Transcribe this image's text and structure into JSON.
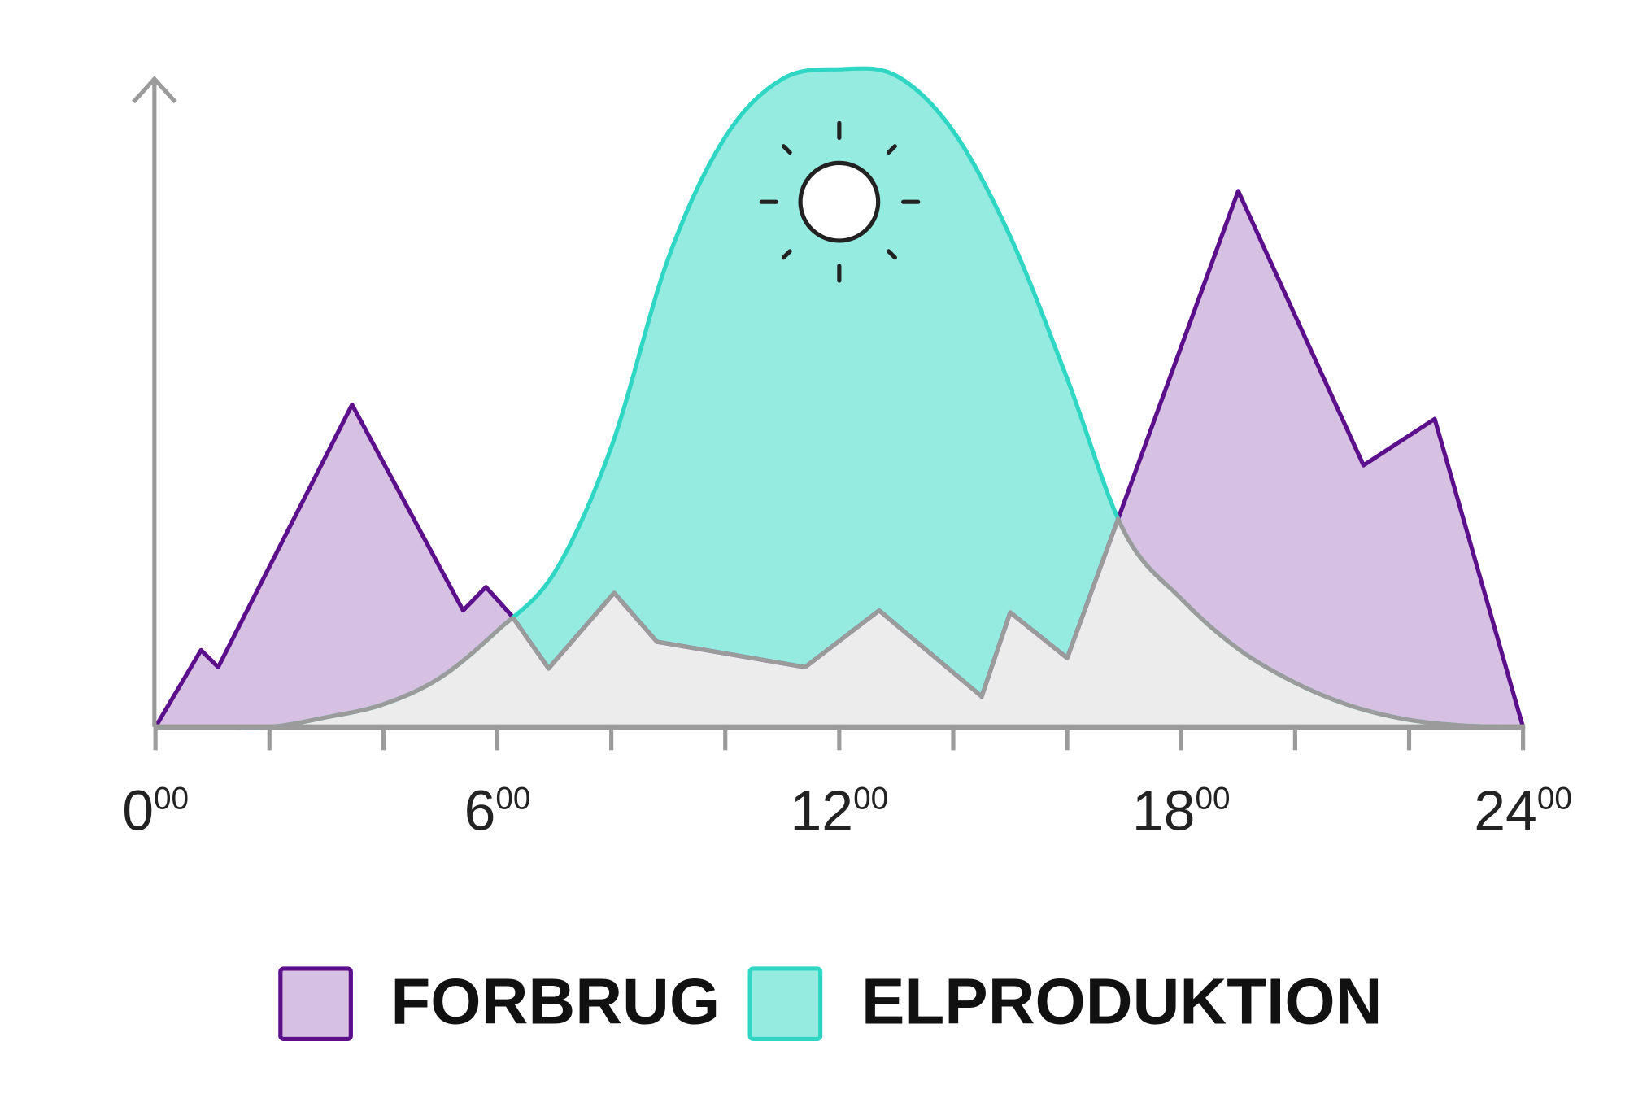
{
  "chart_data": {
    "type": "area",
    "x": [
      0,
      0.8,
      1.1,
      3.45,
      5.4,
      5.8,
      6.25,
      6.9,
      8.05,
      8.8,
      11.4,
      12.7,
      14.5,
      15,
      16,
      16.9,
      19,
      21.2,
      22.45,
      24
    ],
    "series": [
      {
        "name": "FORBRUG",
        "color": "#5c0f8b",
        "fill": "#d6c1e3",
        "x": [
          0,
          0.8,
          1.1,
          3.45,
          5.4,
          5.8,
          6.25,
          6.9,
          8.05,
          8.8,
          11.4,
          12.7,
          14.5,
          15,
          16,
          16.9,
          19,
          21.2,
          22.45,
          24
        ],
        "values": [
          0,
          11.8,
          9.2,
          49.5,
          17.9,
          21.5,
          17.1,
          9,
          20.6,
          13.1,
          9.2,
          17.9,
          4.7,
          17.6,
          10.6,
          32.1,
          82.3,
          40.2,
          47.3,
          0
        ]
      },
      {
        "name": "ELPRODUKTION",
        "color": "#2fd6c4",
        "fill": "#96ebe0",
        "x": [
          0,
          1,
          2,
          3,
          4,
          5,
          6,
          7,
          8,
          9,
          10,
          11,
          12,
          13,
          14,
          15,
          16,
          17,
          18,
          19,
          20,
          21,
          22,
          23,
          24
        ],
        "values": [
          0,
          0,
          0,
          1.5,
          3.5,
          7.6,
          14.8,
          23.7,
          43,
          72,
          90.6,
          99.5,
          101,
          100,
          91.5,
          75.3,
          53.5,
          30,
          19.7,
          12,
          6.8,
          3.2,
          1.1,
          0.2,
          0
        ]
      }
    ],
    "overlap_color": "#ececec",
    "axis_color": "#9b9b9b",
    "xlim": [
      0,
      24
    ],
    "ylim": [
      0,
      110
    ],
    "xticks": [
      {
        "value": 0,
        "label": "0",
        "sup": "00"
      },
      2,
      4,
      {
        "value": 6,
        "label": "6",
        "sup": "00"
      },
      8,
      10,
      {
        "value": 12,
        "label": "12",
        "sup": "00"
      },
      14,
      16,
      {
        "value": 18,
        "label": "18",
        "sup": "00"
      },
      20,
      22,
      {
        "value": 24,
        "label": "24",
        "sup": "00"
      }
    ]
  }
}
